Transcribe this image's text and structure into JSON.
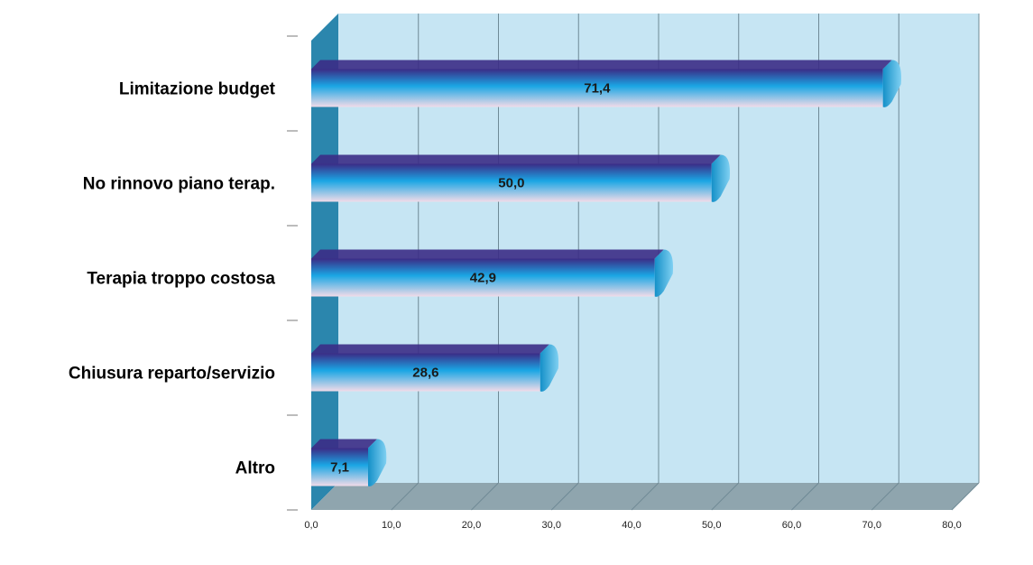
{
  "chart_data": {
    "type": "bar",
    "orientation": "horizontal",
    "categories": [
      "Limitazione budget",
      "No rinnovo piano terap.",
      "Terapia troppo costosa",
      "Chiusura reparto/servizio",
      "Altro"
    ],
    "values": [
      71.4,
      50.0,
      42.9,
      28.6,
      7.1
    ],
    "value_labels": [
      "71,4",
      "50,0",
      "42,9",
      "28,6",
      "7,1"
    ],
    "xlim": [
      0,
      80
    ],
    "x_ticks": [
      0,
      10,
      20,
      30,
      40,
      50,
      60,
      70,
      80
    ],
    "x_tick_labels": [
      "0,0",
      "10,0",
      "20,0",
      "30,0",
      "40,0",
      "50,0",
      "60,0",
      "70,0",
      "80,0"
    ],
    "title": "",
    "xlabel": "",
    "ylabel": "",
    "grid": true,
    "legend": "none",
    "style": "3d",
    "colors": {
      "wall": "#c6e5f3",
      "left_wall": "#2b86ad",
      "floor": "#8fa5ae",
      "bar_dark": "#3b2c86",
      "bar_mid": "#1aa6e4",
      "bar_light": "#f1dbe8"
    }
  }
}
